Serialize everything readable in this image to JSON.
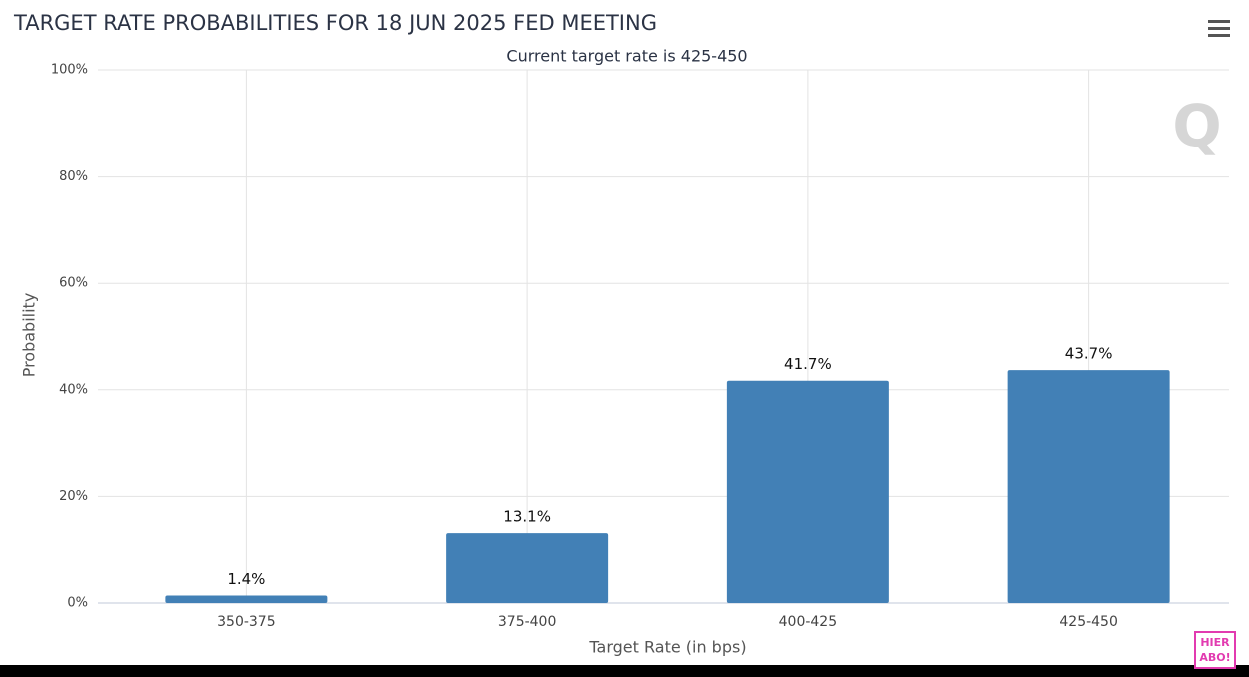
{
  "chart_data": {
    "type": "bar",
    "title": "TARGET RATE PROBABILITIES FOR 18 JUN 2025 FED MEETING",
    "subtitle": "Current target rate is 425-450",
    "x_label": "Target Rate (in bps)",
    "y_label": "Probability",
    "categories": [
      "350-375",
      "375-400",
      "400-425",
      "425-450"
    ],
    "values": [
      1.4,
      13.1,
      41.7,
      43.7
    ],
    "value_labels": [
      "1.4%",
      "13.1%",
      "41.7%",
      "43.7%"
    ],
    "color": "#4280b6",
    "ylim": [
      0,
      100
    ],
    "yticks": [
      {
        "value": 0,
        "label": "0%"
      },
      {
        "value": 20,
        "label": "20%"
      },
      {
        "value": 40,
        "label": "40%"
      },
      {
        "value": 60,
        "label": "60%"
      },
      {
        "value": 80,
        "label": "80%"
      },
      {
        "value": 100,
        "label": "100%"
      }
    ],
    "grid": true,
    "watermark": "Q",
    "badge": [
      "HIER",
      "ABO!"
    ]
  }
}
